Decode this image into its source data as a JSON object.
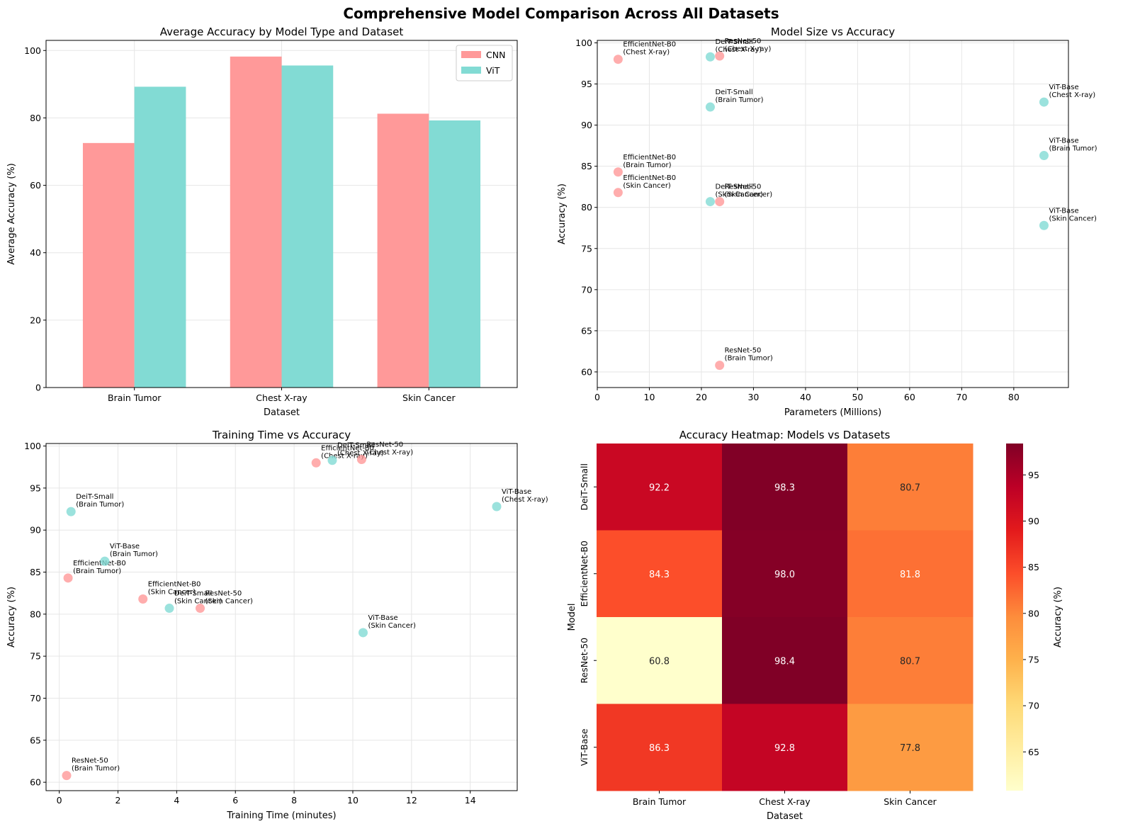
{
  "figure": {
    "title": "Comprehensive Model Comparison Across All Datasets"
  },
  "chart_data": [
    {
      "type": "bar",
      "title": "Average Accuracy by Model Type and Dataset",
      "xlabel": "Dataset",
      "ylabel": "Average Accuracy (%)",
      "categories": [
        "Brain Tumor",
        "Chest X-ray",
        "Skin Cancer"
      ],
      "series": [
        {
          "name": "CNN",
          "values": [
            72.55,
            98.2,
            81.25
          ],
          "color": "#ff9999"
        },
        {
          "name": "ViT",
          "values": [
            89.25,
            95.55,
            79.25
          ],
          "color": "#82dbd4"
        }
      ],
      "ylim": [
        0,
        103
      ],
      "yticks": [
        0,
        20,
        40,
        60,
        80,
        100
      ],
      "grid": true,
      "legend": "top-right"
    },
    {
      "type": "scatter",
      "title": "Model Size vs Accuracy",
      "xlabel": "Parameters (Millions)",
      "ylabel": "Accuracy (%)",
      "xlim": [
        0,
        90.5
      ],
      "ylim": [
        58.1,
        100.3
      ],
      "xticks": [
        0,
        10,
        20,
        30,
        40,
        50,
        60,
        70,
        80
      ],
      "yticks": [
        60,
        65,
        70,
        75,
        80,
        85,
        90,
        95,
        100
      ],
      "grid": true,
      "points": [
        {
          "model": "EfficientNet-B0",
          "dataset": "Chest X-ray",
          "x": 4.0,
          "y": 98.0,
          "kind": "CNN"
        },
        {
          "model": "EfficientNet-B0",
          "dataset": "Brain Tumor",
          "x": 4.0,
          "y": 84.3,
          "kind": "CNN"
        },
        {
          "model": "EfficientNet-B0",
          "dataset": "Skin Cancer",
          "x": 4.0,
          "y": 81.8,
          "kind": "CNN"
        },
        {
          "model": "DeiT-Small",
          "dataset": "Chest X-ray",
          "x": 21.7,
          "y": 98.3,
          "kind": "ViT"
        },
        {
          "model": "DeiT-Small",
          "dataset": "Brain Tumor",
          "x": 21.7,
          "y": 92.2,
          "kind": "ViT"
        },
        {
          "model": "DeiT-Small",
          "dataset": "Skin Cancer",
          "x": 21.7,
          "y": 80.7,
          "kind": "ViT"
        },
        {
          "model": "ResNet-50",
          "dataset": "Chest X-ray",
          "x": 23.5,
          "y": 98.4,
          "kind": "CNN"
        },
        {
          "model": "ResNet-50",
          "dataset": "Skin Cancer",
          "x": 23.5,
          "y": 80.7,
          "kind": "CNN"
        },
        {
          "model": "ResNet-50",
          "dataset": "Brain Tumor",
          "x": 23.5,
          "y": 60.8,
          "kind": "CNN"
        },
        {
          "model": "ViT-Base",
          "dataset": "Chest X-ray",
          "x": 85.8,
          "y": 92.8,
          "kind": "ViT"
        },
        {
          "model": "ViT-Base",
          "dataset": "Brain Tumor",
          "x": 85.8,
          "y": 86.3,
          "kind": "ViT"
        },
        {
          "model": "ViT-Base",
          "dataset": "Skin Cancer",
          "x": 85.8,
          "y": 77.8,
          "kind": "ViT"
        }
      ]
    },
    {
      "type": "scatter",
      "title": "Training Time vs Accuracy",
      "xlabel": "Training Time (minutes)",
      "ylabel": "Accuracy (%)",
      "xlim": [
        -0.45,
        15.6
      ],
      "ylim": [
        59.0,
        100.3
      ],
      "xticks": [
        0,
        2,
        4,
        6,
        8,
        10,
        12,
        14
      ],
      "yticks": [
        60,
        65,
        70,
        75,
        80,
        85,
        90,
        95,
        100
      ],
      "grid": true,
      "points": [
        {
          "model": "DeiT-Small",
          "dataset": "Brain Tumor",
          "x": 0.4,
          "y": 92.2,
          "kind": "ViT"
        },
        {
          "model": "EfficientNet-B0",
          "dataset": "Brain Tumor",
          "x": 0.3,
          "y": 84.3,
          "kind": "CNN"
        },
        {
          "model": "ResNet-50",
          "dataset": "Brain Tumor",
          "x": 0.25,
          "y": 60.8,
          "kind": "CNN"
        },
        {
          "model": "ViT-Base",
          "dataset": "Brain Tumor",
          "x": 1.55,
          "y": 86.3,
          "kind": "ViT"
        },
        {
          "model": "EfficientNet-B0",
          "dataset": "Skin Cancer",
          "x": 2.85,
          "y": 81.8,
          "kind": "CNN"
        },
        {
          "model": "DeiT-Small",
          "dataset": "Skin Cancer",
          "x": 3.75,
          "y": 80.7,
          "kind": "ViT"
        },
        {
          "model": "ResNet-50",
          "dataset": "Skin Cancer",
          "x": 4.8,
          "y": 80.7,
          "kind": "CNN"
        },
        {
          "model": "EfficientNet-B0",
          "dataset": "Chest X-ray",
          "x": 8.75,
          "y": 98.0,
          "kind": "CNN"
        },
        {
          "model": "DeiT-Small",
          "dataset": "Chest X-ray",
          "x": 9.3,
          "y": 98.3,
          "kind": "ViT"
        },
        {
          "model": "ResNet-50",
          "dataset": "Chest X-ray",
          "x": 10.3,
          "y": 98.4,
          "kind": "CNN"
        },
        {
          "model": "ViT-Base",
          "dataset": "Skin Cancer",
          "x": 10.35,
          "y": 77.8,
          "kind": "ViT"
        },
        {
          "model": "ViT-Base",
          "dataset": "Chest X-ray",
          "x": 14.9,
          "y": 92.8,
          "kind": "ViT"
        }
      ]
    },
    {
      "type": "heatmap",
      "title": "Accuracy Heatmap: Models vs Datasets",
      "xlabel": "Dataset",
      "ylabel": "Model",
      "columns": [
        "Brain Tumor",
        "Chest X-ray",
        "Skin Cancer"
      ],
      "rows": [
        "DeiT-Small",
        "EfficientNet-B0",
        "ResNet-50",
        "ViT-Base"
      ],
      "values": [
        [
          92.2,
          98.3,
          80.7
        ],
        [
          84.3,
          98.0,
          81.8
        ],
        [
          60.8,
          98.4,
          80.7
        ],
        [
          86.3,
          92.8,
          77.8
        ]
      ],
      "colormap": "YlOrRd",
      "vmin": 60.8,
      "vmax": 98.4,
      "colorbar_label": "Accuracy (%)",
      "colorbar_ticks": [
        65,
        70,
        75,
        80,
        85,
        90,
        95
      ]
    }
  ],
  "colors": {
    "cnn": "#ff9999",
    "vit": "#82dbd4"
  }
}
